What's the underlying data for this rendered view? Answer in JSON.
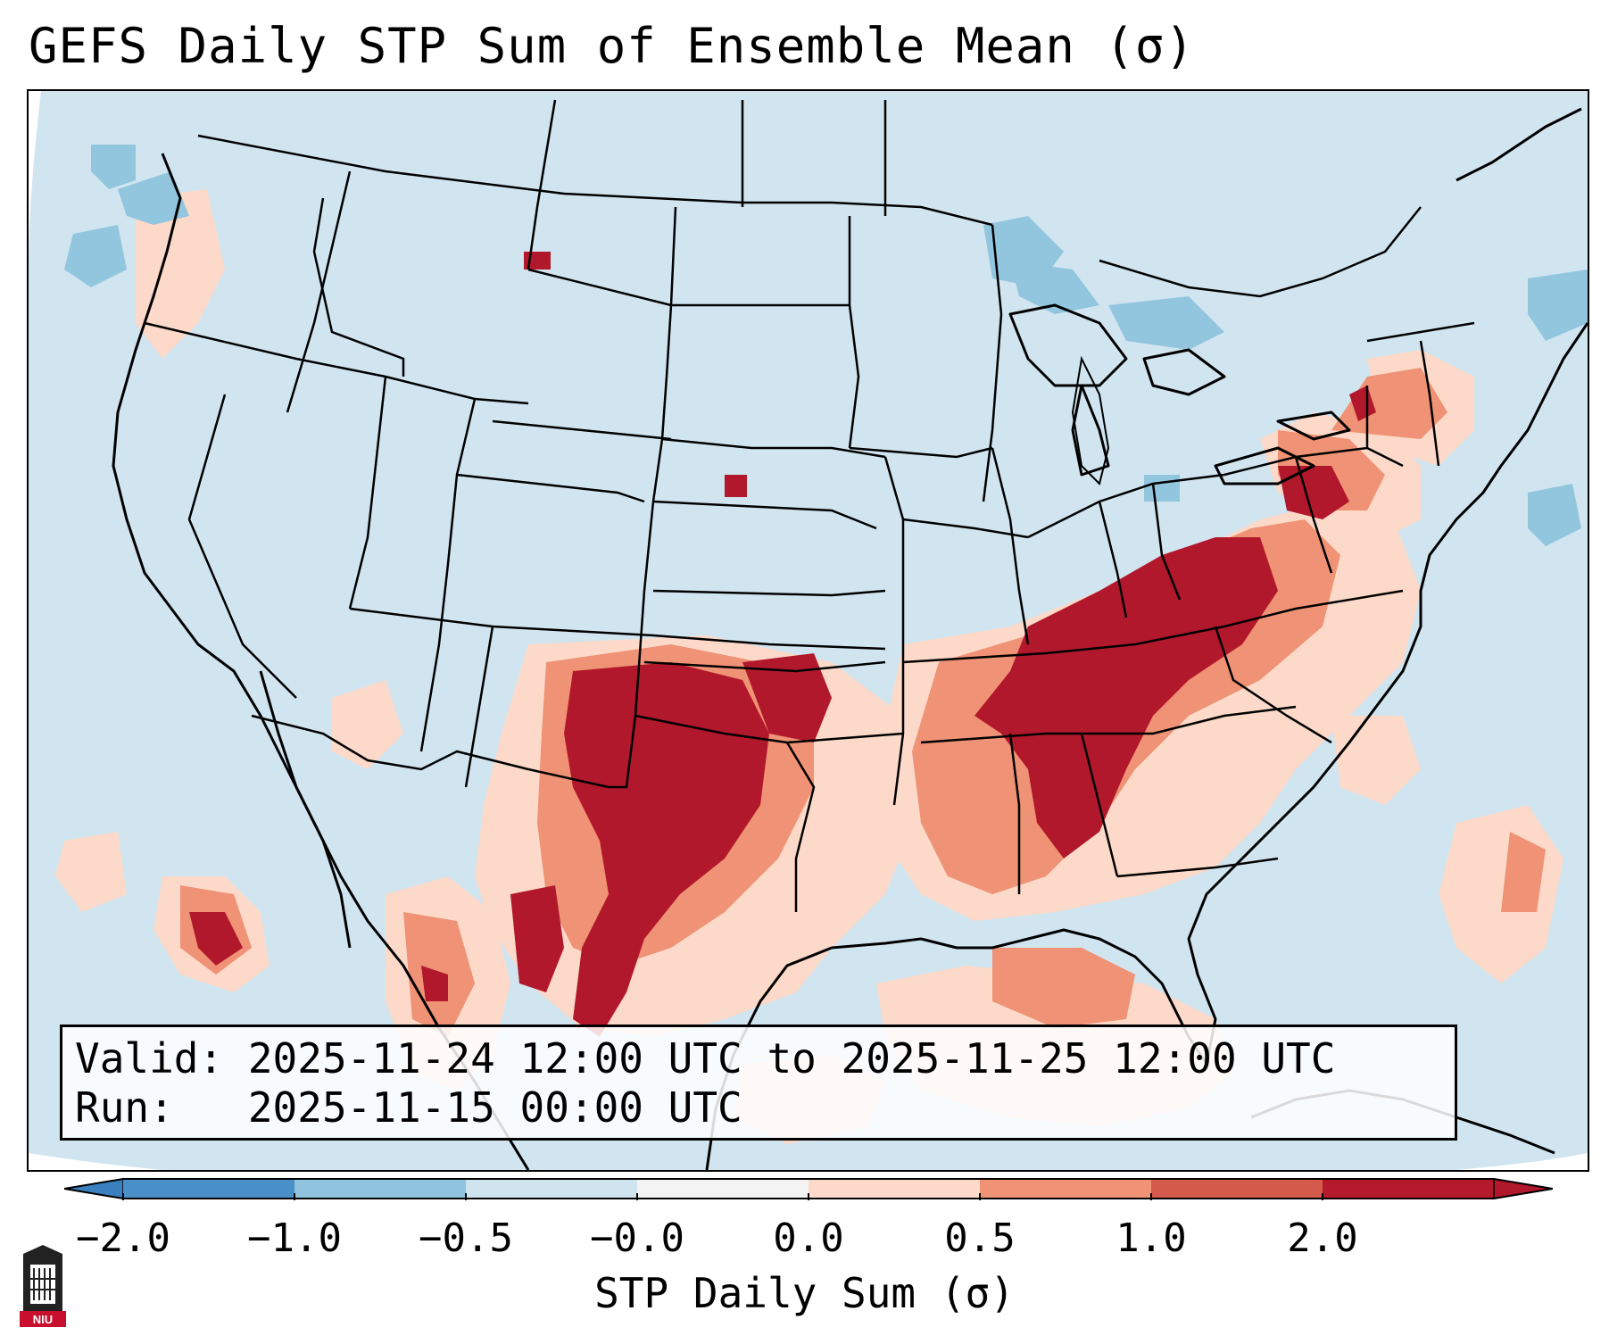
{
  "title": "GEFS Daily STP Sum of Ensemble Mean (σ)",
  "info_box": {
    "valid_line": "Valid: 2025-11-24 12:00 UTC to 2025-11-25 12:00 UTC",
    "run_line": "Run:   2025-11-15 00:00 UTC"
  },
  "colorbar": {
    "label": "STP Daily Sum (σ)",
    "ticks": [
      "−2.0",
      "−1.0",
      "−0.5",
      "−0.0",
      "0.0",
      "0.5",
      "1.0",
      "2.0"
    ],
    "bin_colors": [
      "#4a90c8",
      "#8fc3de",
      "#d0e4ef",
      "#f3f3f3",
      "#fcd9c8",
      "#ef9275",
      "#d45a4c",
      "#b51a2c"
    ],
    "extend_low_color": "#3a7fbe",
    "extend_high_color": "#b2182b"
  },
  "map": {
    "region": "Contiguous United States",
    "field": "STP daily sum anomaly (sigma)",
    "background_color": "#d1e5f0",
    "outside_projection_color": "#ffffff"
  },
  "logo": {
    "text": "NIU"
  }
}
